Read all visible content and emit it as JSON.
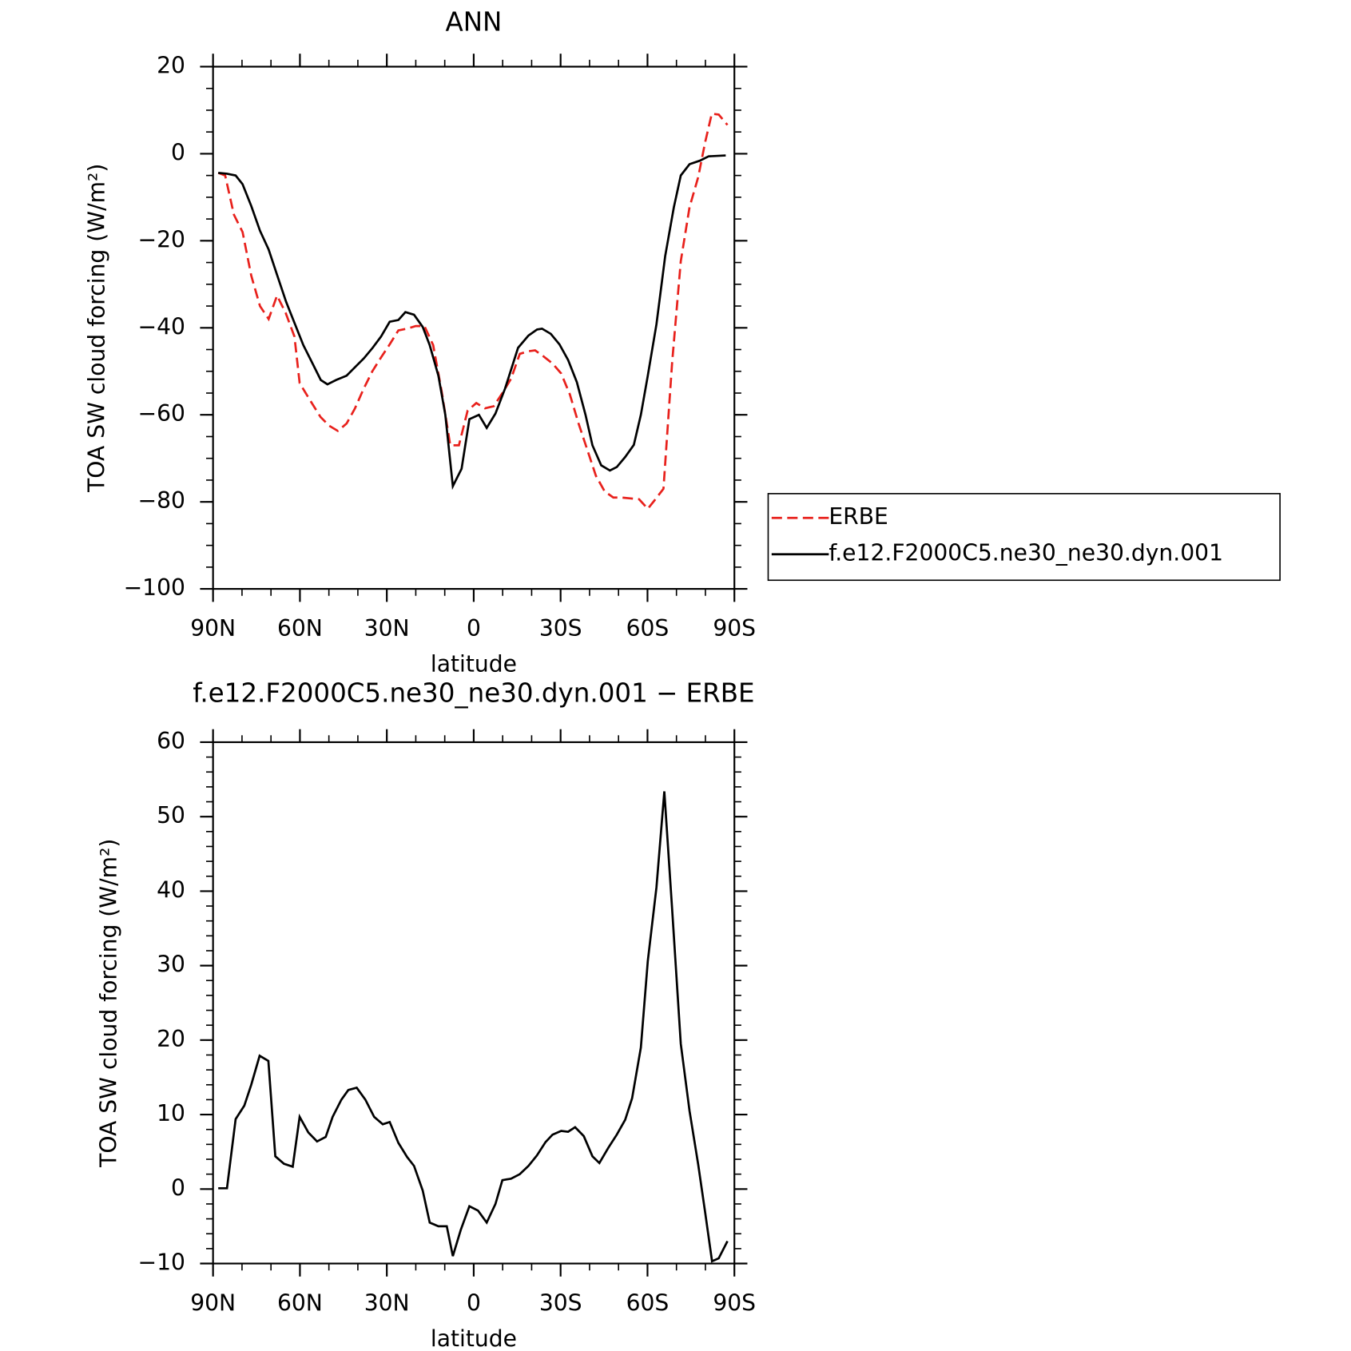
{
  "chart_data": [
    {
      "type": "line",
      "title": "ANN",
      "xlabel": "latitude",
      "ylabel": "TOA SW cloud forcing (W/m²)",
      "xlim": [
        90,
        -90
      ],
      "xticks": [
        {
          "value": 90,
          "label": "90N"
        },
        {
          "value": 60,
          "label": "60N"
        },
        {
          "value": 30,
          "label": "30N"
        },
        0,
        {
          "value": -30,
          "label": "30S"
        },
        {
          "value": -60,
          "label": "60S"
        },
        {
          "value": -90,
          "label": "90S"
        }
      ],
      "xminor_step": 10,
      "ylim": [
        -100,
        20
      ],
      "yticks": [
        {
          "value": -100,
          "label": "−100"
        },
        {
          "value": -80,
          "label": "−80"
        },
        {
          "value": -60,
          "label": "−60"
        },
        {
          "value": -40,
          "label": "−40"
        },
        {
          "value": -20,
          "label": "−20"
        },
        0,
        20
      ],
      "yminor_step": 5,
      "legend": "right",
      "series": [
        {
          "name": "ERBE",
          "color": "#e8211c",
          "dash": true,
          "x": [
            88.2,
            85.8,
            82.8,
            79.8,
            76.8,
            73.8,
            70.8,
            67.9,
            64.9,
            61.9,
            60.1,
            57.1,
            52.9,
            49.9,
            46.9,
            43.9,
            41.0,
            38.0,
            35.0,
            32.0,
            29.0,
            26.0,
            23.0,
            20.0,
            17.0,
            14.0,
            11.1,
            8.1,
            5.1,
            2.1,
            -0.9,
            -3.9,
            -6.9,
            -9.9,
            -12.9,
            -15.9,
            -18.9,
            -21.2,
            -24.2,
            -27.2,
            -30.2,
            -33.2,
            -36.2,
            -39.2,
            -42.2,
            -45.2,
            -48.2,
            -51.1,
            -54.1,
            -57.1,
            -60.1,
            -62.5,
            -65.5,
            -68.5,
            -71.5,
            -74.5,
            -77.5,
            -79.9,
            -82.2,
            -84.6,
            -87.6
          ],
          "values": [
            -4.4,
            -5,
            -14,
            -18,
            -28,
            -35,
            -38,
            -32.6,
            -36.6,
            -42,
            -52.7,
            -56,
            -60.5,
            -62.5,
            -63.7,
            -62,
            -58.5,
            -54,
            -50,
            -46.8,
            -43.8,
            -40.6,
            -40.2,
            -39.6,
            -39.6,
            -44,
            -54.5,
            -67,
            -67,
            -59,
            -57.3,
            -58.5,
            -58,
            -55,
            -51.7,
            -46,
            -45.4,
            -45.2,
            -46.6,
            -48.2,
            -50.5,
            -55.3,
            -62,
            -68,
            -74,
            -77.6,
            -79,
            -79,
            -79.2,
            -79.4,
            -81.6,
            -79.6,
            -77,
            -48,
            -24.7,
            -12.3,
            -5.4,
            2.6,
            9.2,
            9,
            6.6
          ]
        },
        {
          "name": "f.e12.F2000C5.ne30_ne30.dyn.001",
          "color": "#000000",
          "dash": false,
          "x": [
            88.2,
            85.2,
            82.2,
            79.8,
            76.8,
            73.8,
            70.8,
            67.8,
            64.8,
            61.8,
            58.8,
            55.8,
            52.8,
            50.5,
            47.5,
            43.9,
            40.9,
            37.9,
            34.9,
            32.0,
            29.0,
            26.0,
            23.6,
            20.6,
            17.6,
            15.2,
            12.2,
            9.8,
            7.2,
            4.2,
            1.5,
            -1.8,
            -4.5,
            -7.5,
            -10.8,
            -15.3,
            -18.9,
            -21.9,
            -23.6,
            -26.6,
            -29.6,
            -32.6,
            -35.6,
            -38.6,
            -41.0,
            -44.0,
            -47.0,
            -49.4,
            -52.3,
            -55.3,
            -57.7,
            -60.1,
            -63.1,
            -66.1,
            -69.1,
            -71.5,
            -74.5,
            -78.1,
            -81.1,
            -87.0
          ],
          "values": [
            -4.4,
            -4.6,
            -5,
            -7,
            -12,
            -17.7,
            -22,
            -28,
            -34,
            -39,
            -44,
            -48,
            -52,
            -53,
            -52,
            -51,
            -49,
            -47,
            -44.6,
            -42,
            -38.6,
            -38.2,
            -36.4,
            -37,
            -39.8,
            -44,
            -51,
            -60,
            -76.4,
            -72.4,
            -61,
            -60,
            -63,
            -59.7,
            -54,
            -44.6,
            -41.8,
            -40.4,
            -40.2,
            -41.4,
            -43.8,
            -47.4,
            -52.5,
            -60,
            -67,
            -71.6,
            -72.8,
            -72,
            -69.7,
            -66.9,
            -60,
            -51,
            -39.2,
            -23.5,
            -12.3,
            -5,
            -2.4,
            -1.6,
            -0.6,
            -0.4
          ]
        }
      ]
    },
    {
      "type": "line",
      "title": "f.e12.F2000C5.ne30_ne30.dyn.001 − ERBE",
      "xlabel": "latitude",
      "ylabel": "TOA SW cloud forcing (W/m²)",
      "xlim": [
        90,
        -90
      ],
      "xticks": [
        {
          "value": 90,
          "label": "90N"
        },
        {
          "value": 60,
          "label": "60N"
        },
        {
          "value": 30,
          "label": "30N"
        },
        0,
        {
          "value": -30,
          "label": "30S"
        },
        {
          "value": -60,
          "label": "60S"
        },
        {
          "value": -90,
          "label": "90S"
        }
      ],
      "xminor_step": 10,
      "ylim": [
        -10,
        60
      ],
      "yticks": [
        {
          "value": -10,
          "label": "−10"
        },
        0,
        10,
        20,
        30,
        40,
        50,
        60
      ],
      "yminor_step": 2,
      "series": [
        {
          "color": "#000000",
          "dash": false,
          "x": [
            88.2,
            85.2,
            82.2,
            79.2,
            76.8,
            73.9,
            70.9,
            68.5,
            65.5,
            62.5,
            60.1,
            57.1,
            54.1,
            51.1,
            48.7,
            45.7,
            43.3,
            40.4,
            37.4,
            34.4,
            31.4,
            29.0,
            26.0,
            23.0,
            20.6,
            17.6,
            15.2,
            12.2,
            9.3,
            7.2,
            4.5,
            1.5,
            -1.5,
            -4.5,
            -7.5,
            -9.9,
            -12.9,
            -15.9,
            -18.9,
            -21.8,
            -24.8,
            -27.2,
            -30.2,
            -32.6,
            -35.0,
            -38.0,
            -41.0,
            -43.4,
            -46.4,
            -49.4,
            -52.3,
            -54.7,
            -57.7,
            -60.1,
            -63.1,
            -65.8,
            -68.5,
            -71.5,
            -74.5,
            -77.5,
            -79.9,
            -82.3,
            -84.6,
            -87.6
          ],
          "values": [
            0.1,
            0.1,
            9.4,
            11.2,
            14,
            17.9,
            17.2,
            4.4,
            3.4,
            3,
            9.7,
            7.6,
            6.4,
            7,
            9.7,
            12,
            13.3,
            13.6,
            12,
            9.7,
            8.7,
            9,
            6.2,
            4.3,
            3.1,
            -0.2,
            -4.5,
            -5,
            -5,
            -9,
            -5.5,
            -2.3,
            -2.9,
            -4.5,
            -2,
            1.2,
            1.4,
            2,
            3.1,
            4.5,
            6.3,
            7.3,
            7.8,
            7.7,
            8.3,
            7.1,
            4.4,
            3.5,
            5.5,
            7.3,
            9.3,
            12.2,
            19,
            30.6,
            40.5,
            53.4,
            37.6,
            19.5,
            10.5,
            3.3,
            -3.1,
            -9.7,
            -9.3,
            -7
          ]
        }
      ]
    }
  ]
}
